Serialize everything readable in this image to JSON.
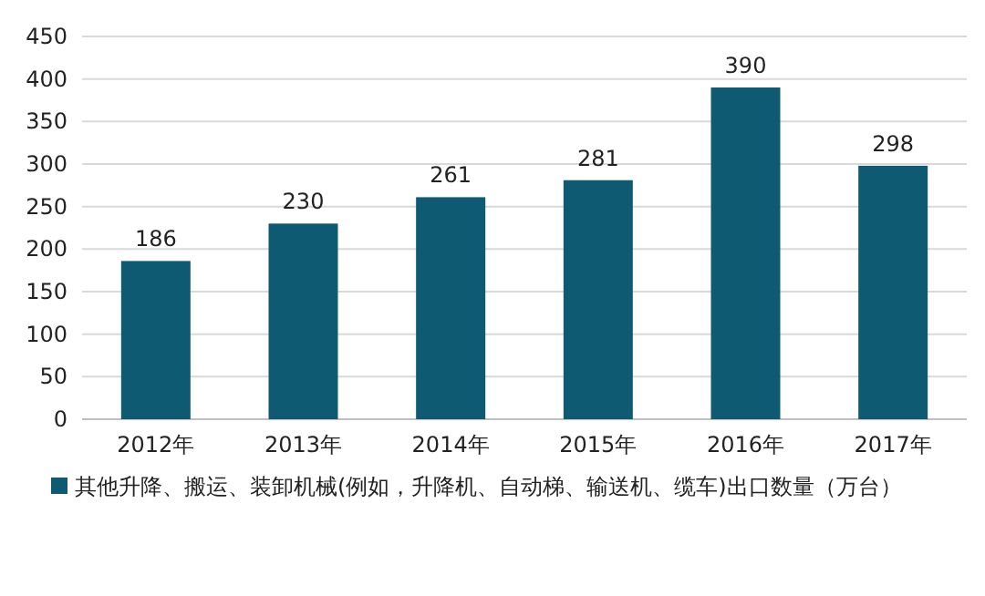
{
  "chart_data": {
    "type": "bar",
    "categories": [
      "2012年",
      "2013年",
      "2014年",
      "2015年",
      "2016年",
      "2017年"
    ],
    "series": [
      {
        "name": "其他升降、搬运、装卸机械(例如，升降机、自动梯、输送机、缆车)出口数量（万台）",
        "color": "#0e5a73",
        "values": [
          186,
          230,
          261,
          281,
          390,
          298
        ]
      }
    ],
    "ylim": [
      0,
      450
    ],
    "yticks": [
      0,
      50,
      100,
      150,
      200,
      250,
      300,
      350,
      400,
      450
    ],
    "grid": "y",
    "data_labels": true,
    "legend": "bottom"
  }
}
